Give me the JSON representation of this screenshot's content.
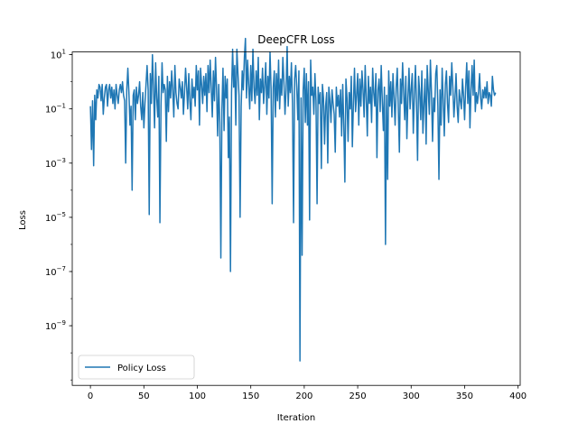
{
  "chart_data": {
    "type": "line",
    "title": "DeepCFR Loss",
    "xlabel": "Iteration",
    "ylabel": "Loss",
    "xlim": [
      -17,
      402
    ],
    "ylim_log10": [
      -11.2,
      1.1
    ],
    "yscale": "log",
    "grid": false,
    "legend_position": "lower-left",
    "x_ticks": [
      0,
      50,
      100,
      150,
      200,
      250,
      300,
      350,
      400
    ],
    "x_tick_labels": [
      "0",
      "50",
      "100",
      "150",
      "200",
      "250",
      "300",
      "350",
      "400"
    ],
    "y_ticks_log10": [
      1,
      -1,
      -3,
      -5,
      -7,
      -9
    ],
    "y_tick_labels": [
      {
        "base": "10",
        "exp": "1"
      },
      {
        "base": "10",
        "exp": "−1"
      },
      {
        "base": "10",
        "exp": "−3"
      },
      {
        "base": "10",
        "exp": "−5"
      },
      {
        "base": "10",
        "exp": "−7"
      },
      {
        "base": "10",
        "exp": "−9"
      }
    ],
    "series": [
      {
        "name": "Policy Loss",
        "color": "#1f77b4",
        "x_start": 0,
        "x_step": 1,
        "log10_values": [
          -0.9,
          -2.5,
          -0.7,
          -3.1,
          -0.5,
          -1.4,
          -0.3,
          -0.6,
          -0.1,
          -0.2,
          -0.7,
          -0.1,
          -1.2,
          -0.6,
          -0.2,
          -0.1,
          -0.9,
          -0.3,
          -0.1,
          -0.6,
          -0.2,
          -0.8,
          -0.3,
          -1.0,
          -0.1,
          -0.5,
          -0.8,
          -0.3,
          -0.1,
          -0.4,
          0.0,
          -0.5,
          -0.7,
          -3.0,
          -0.3,
          0.5,
          -0.4,
          -1.6,
          -0.9,
          -4.0,
          -0.5,
          -0.3,
          -1.4,
          -0.2,
          -0.8,
          -0.5,
          0.0,
          -0.9,
          -1.4,
          -0.4,
          -1.7,
          -0.8,
          -0.1,
          0.6,
          -0.3,
          -4.9,
          0.3,
          -0.8,
          1.0,
          -0.2,
          -1.7,
          0.7,
          -0.6,
          -1.3,
          0.2,
          -5.2,
          -0.9,
          0.7,
          -0.4,
          -0.1,
          -0.3,
          -2.2,
          0.2,
          -1.1,
          0.0,
          -0.6,
          0.4,
          -0.3,
          -1.3,
          0.6,
          -0.4,
          -0.8,
          -1.0,
          0.1,
          -0.2,
          -0.6,
          0.0,
          -1.2,
          -0.4,
          0.5,
          -0.2,
          -1.0,
          0.3,
          -0.7,
          -1.4,
          0.1,
          -0.6,
          -0.2,
          -0.9,
          0.6,
          -0.3,
          0.4,
          -1.6,
          0.5,
          -0.1,
          -0.8,
          0.2,
          -0.5,
          0.3,
          -1.1,
          0.6,
          -0.4,
          0.8,
          -0.2,
          -1.3,
          0.4,
          -0.7,
          0.9,
          -0.3,
          -2.0,
          -0.1,
          -1.5,
          -6.5,
          -1.0,
          0.5,
          -1.8,
          0.2,
          -0.6,
          0.1,
          -2.8,
          -1.3,
          -7.0,
          -0.4,
          1.2,
          -0.2,
          0.6,
          -1.6,
          1.2,
          0.3,
          -0.5,
          -5.0,
          -0.9,
          0.4,
          -0.3,
          0.9,
          1.6,
          -0.6,
          0.8,
          -0.1,
          -1.0,
          0.6,
          -0.7,
          1.2,
          -0.2,
          -0.8,
          0.4,
          -0.5,
          0.9,
          -1.4,
          0.1,
          -0.4,
          0.5,
          -0.8,
          -0.1,
          0.7,
          -1.2,
          0.2,
          -0.6,
          1.1,
          -0.3,
          -4.5,
          -0.2,
          0.4,
          -1.3,
          0.3,
          -0.7,
          0.8,
          -1.0,
          0.1,
          -0.5,
          0.9,
          0.0,
          -1.2,
          -0.3,
          1.3,
          -0.9,
          0.2,
          -0.4,
          0.7,
          -0.8,
          -5.2,
          0.1,
          0.6,
          -0.2,
          -1.4,
          0.4,
          -10.3,
          -0.6,
          -6.4,
          -0.3,
          0.5,
          -1.5,
          0.3,
          -1.6,
          0.0,
          -5.1,
          0.8,
          -0.5,
          -0.2,
          -1.2,
          0.3,
          -0.7,
          -4.5,
          -0.2,
          -0.8,
          -0.4,
          -3.2,
          -0.1,
          -0.6,
          -2.3,
          -0.9,
          -0.4,
          -3.0,
          -0.2,
          -0.7,
          -1.5,
          -0.3,
          -0.8,
          -1.2,
          -2.6,
          -0.2,
          -0.9,
          -0.5,
          -1.3,
          -0.3,
          -2.0,
          -0.1,
          -1.6,
          -3.7,
          0.1,
          -0.6,
          -2.2,
          -0.4,
          -1.0,
          0.2,
          -2.4,
          -0.8,
          0.5,
          -1.1,
          -0.5,
          0.3,
          -1.6,
          0.1,
          -0.9,
          0.4,
          -0.3,
          -1.3,
          0.6,
          -0.6,
          -2.0,
          0.2,
          -0.8,
          -0.2,
          -1.5,
          0.5,
          -0.4,
          -0.9,
          0.3,
          -2.8,
          -0.3,
          0.1,
          -1.1,
          0.6,
          -0.7,
          -1.8,
          -0.2,
          -6.0,
          -0.5,
          -3.6,
          0.4,
          -0.9,
          0.0,
          -1.3,
          0.3,
          -0.6,
          -1.6,
          -0.2,
          0.5,
          -1.0,
          -2.6,
          0.1,
          -0.8,
          0.7,
          -0.4,
          -1.4,
          0.2,
          -2.1,
          -0.6,
          0.5,
          -1.0,
          -0.3,
          0.3,
          -1.9,
          -0.5,
          0.6,
          -0.8,
          -2.9,
          0.2,
          -0.4,
          -1.4,
          0.4,
          -1.9,
          -0.8,
          0.1,
          -2.3,
          0.6,
          -0.3,
          -1.2,
          0.8,
          -0.4,
          -2.2,
          -0.6,
          -1.1,
          0.3,
          0.6,
          -0.9,
          -3.6,
          -0.3,
          -1.6,
          0.5,
          -0.7,
          -2.0,
          -0.1,
          0.4,
          -0.8,
          -1.5,
          0.2,
          -0.5,
          0.7,
          -0.2,
          -1.3,
          -0.6,
          0.3,
          -0.9,
          -1.5,
          -0.3,
          -0.7,
          -1.0,
          0.1,
          -0.5,
          -1.4,
          -0.2,
          0.7,
          -0.8,
          0.4,
          -1.7,
          -0.3,
          0.6,
          -0.5,
          0.8,
          -1.1,
          -0.4,
          -0.8,
          -0.4,
          0.3,
          -0.6,
          -1.0,
          -0.3,
          -0.6,
          -0.2,
          -0.6,
          0.0,
          -0.8,
          -0.4,
          -0.5,
          -0.9,
          0.2,
          -0.3,
          -0.5,
          -0.4
        ]
      }
    ]
  },
  "colors": {
    "series_line": "#1f77b4",
    "axis": "#000000",
    "legend_border": "#cccccc"
  }
}
